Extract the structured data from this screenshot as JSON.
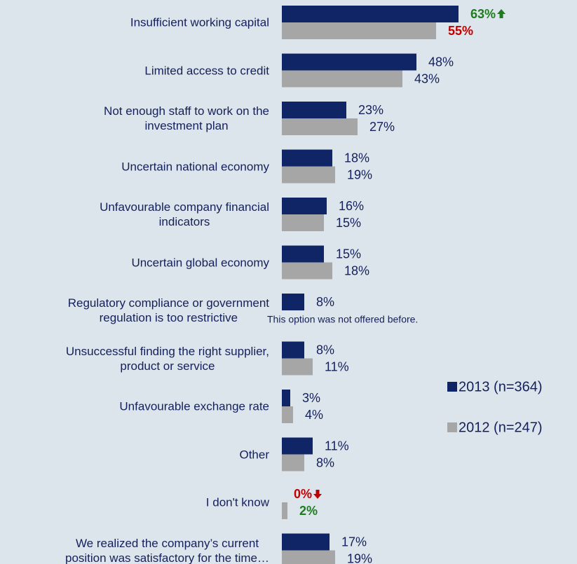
{
  "chart_data": {
    "type": "hbar",
    "categories": [
      "Insufficient working capital",
      "Limited access to credit",
      "Not enough staff to work on the\ninvestment plan",
      "Uncertain national economy",
      "Unfavourable company financial\nindicators",
      "Uncertain global economy",
      "Regulatory compliance or government\nregulation is too restrictive",
      "Unsuccessful finding the right supplier,\nproduct or service",
      "Unfavourable exchange rate",
      "Other",
      "I don't know",
      "We realized the company’s current\nposition was satisfactory for the time…"
    ],
    "xlim": [
      0,
      100
    ],
    "legend": "right",
    "series": [
      {
        "name": "2013 (n=364)",
        "color": "#0f2565",
        "values": [
          63,
          48,
          23,
          18,
          16,
          15,
          8,
          8,
          3,
          11,
          0,
          17
        ],
        "value_labels": [
          "63%",
          "48%",
          "23%",
          "18%",
          "16%",
          "15%",
          "8%",
          "8%",
          "3%",
          "11%",
          "0%",
          "17%"
        ],
        "value_label_colors": [
          "#1e7b1e",
          null,
          null,
          null,
          null,
          null,
          null,
          null,
          null,
          null,
          "#c00000",
          null
        ],
        "value_label_arrows": [
          "up",
          null,
          null,
          null,
          null,
          null,
          null,
          null,
          null,
          null,
          "down",
          null
        ]
      },
      {
        "name": "2012 (n=247)",
        "color": "#a6a6a6",
        "values": [
          55,
          43,
          27,
          19,
          15,
          18,
          null,
          11,
          4,
          8,
          2,
          19
        ],
        "value_labels": [
          "55%",
          "43%",
          "27%",
          "19%",
          "15%",
          "18%",
          null,
          "11%",
          "4%",
          "8%",
          "2%",
          "19%"
        ],
        "value_label_colors": [
          "#c00000",
          null,
          null,
          null,
          null,
          null,
          null,
          null,
          null,
          null,
          "#1e7b1e",
          null
        ]
      }
    ],
    "annotations": [
      {
        "category": 6,
        "text": "This option was not offered before."
      }
    ]
  }
}
